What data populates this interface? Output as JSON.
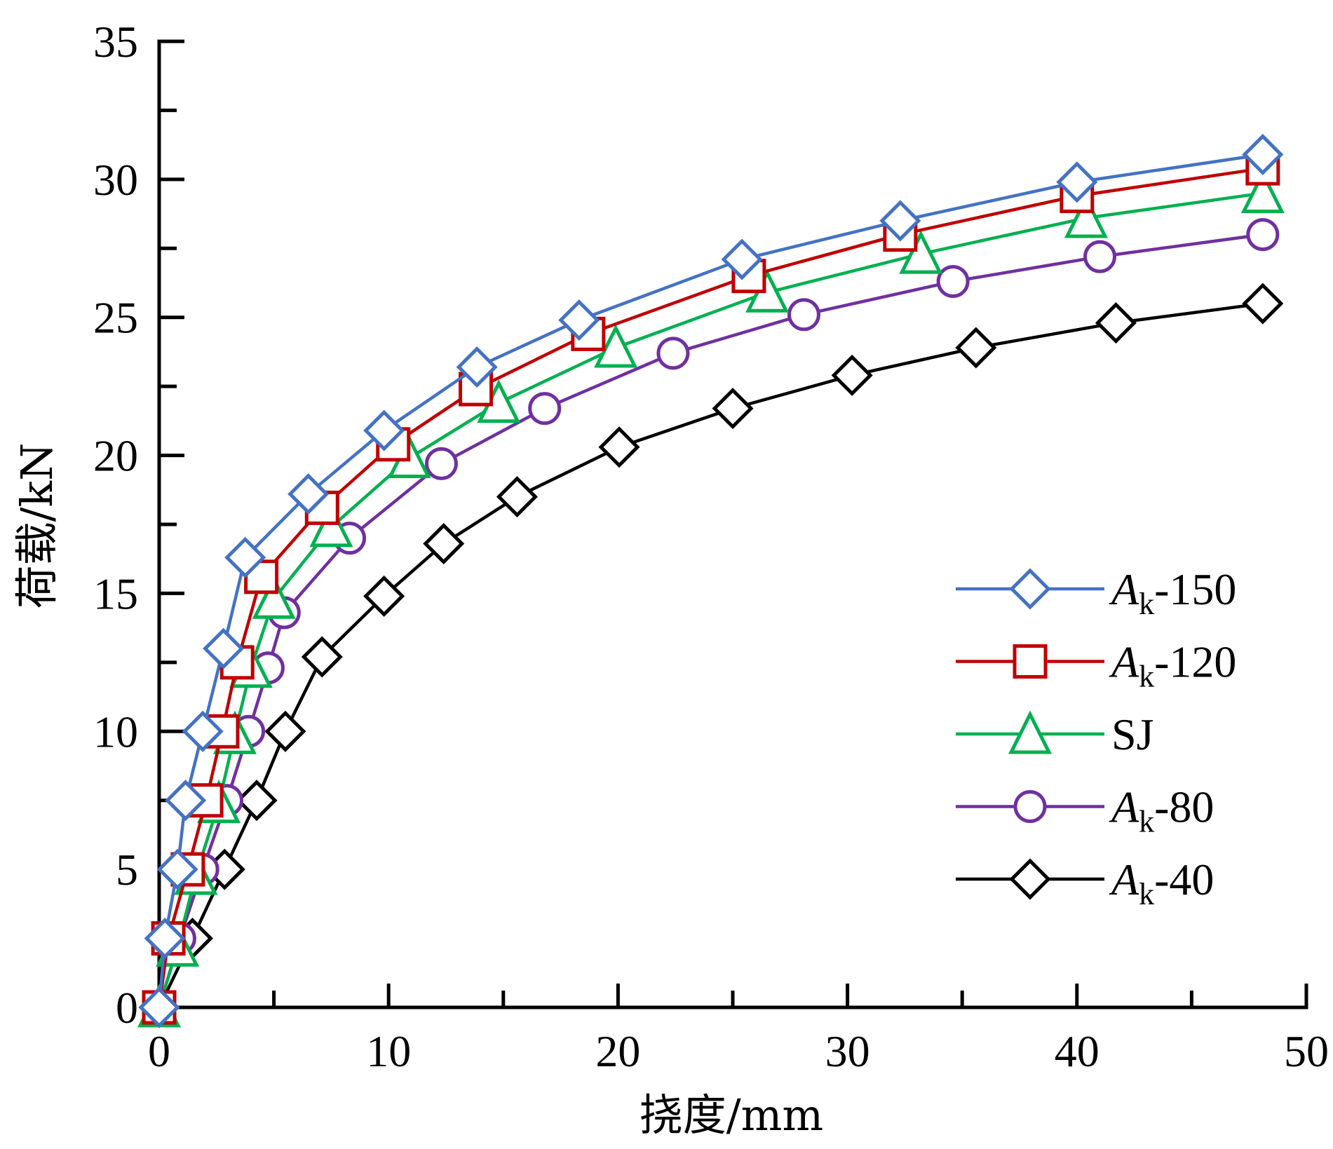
{
  "chart_data": {
    "type": "line",
    "title": "",
    "xlabel": "挠度/mm",
    "ylabel": "荷载/kN",
    "xlim": [
      0,
      50
    ],
    "ylim": [
      0,
      35
    ],
    "x_ticks": [
      0,
      10,
      20,
      30,
      40,
      50
    ],
    "x_tick_labels": [
      "0",
      "10",
      "20",
      "30",
      "40",
      "50"
    ],
    "x_minor_ticks": [
      5,
      15,
      25,
      35,
      45
    ],
    "y_ticks": [
      0,
      5,
      10,
      15,
      20,
      25,
      30,
      35
    ],
    "y_tick_labels": [
      "0",
      "5",
      "10",
      "15",
      "20",
      "25",
      "30",
      "35"
    ],
    "y_minor_ticks": [
      2.5,
      7.5,
      12.5,
      17.5,
      22.5,
      27.5,
      32.5
    ],
    "grid": false,
    "legend_position": "lower-right",
    "series": [
      {
        "name": "Ak-150",
        "label_main": "A",
        "label_sub": "k",
        "label_suffix": "-150",
        "italic_main": true,
        "color": "#4472C4",
        "marker": "diamond",
        "x": [
          0,
          0.25,
          0.8,
          1.15,
          1.9,
          2.8,
          3.75,
          6.5,
          9.8,
          13.85,
          18.3,
          25.4,
          32.3,
          40.0,
          48.1
        ],
        "y": [
          0,
          2.5,
          5.0,
          7.5,
          10.0,
          13.0,
          16.3,
          18.6,
          20.9,
          23.2,
          24.9,
          27.1,
          28.5,
          29.9,
          30.9
        ]
      },
      {
        "name": "Ak-120",
        "label_main": "A",
        "label_sub": "k",
        "label_suffix": "-120",
        "italic_main": true,
        "color": "#C00000",
        "marker": "square",
        "x": [
          0,
          0.4,
          1.25,
          2.05,
          2.75,
          3.4,
          4.45,
          7.1,
          10.2,
          13.8,
          18.7,
          25.7,
          32.3,
          40.0,
          48.1
        ],
        "y": [
          0,
          2.5,
          5.0,
          7.5,
          10.0,
          12.5,
          15.6,
          18.1,
          20.4,
          22.4,
          24.4,
          26.5,
          28.0,
          29.4,
          30.4
        ]
      },
      {
        "name": "SJ",
        "label_main": "SJ",
        "label_sub": "",
        "label_suffix": "",
        "italic_main": false,
        "color": "#00B050",
        "marker": "triangle",
        "x": [
          0,
          0.8,
          1.6,
          2.6,
          3.3,
          4.0,
          5.0,
          7.5,
          10.9,
          14.8,
          19.9,
          26.5,
          33.2,
          40.4,
          48.1
        ],
        "y": [
          0,
          2.2,
          4.8,
          7.4,
          9.9,
          12.3,
          14.8,
          17.4,
          19.9,
          21.9,
          23.9,
          25.9,
          27.3,
          28.6,
          29.5
        ]
      },
      {
        "name": "Ak-80",
        "label_main": "A",
        "label_sub": "k",
        "label_suffix": "-80",
        "italic_main": true,
        "color": "#7030A0",
        "marker": "circle",
        "x": [
          0,
          0.9,
          1.9,
          2.95,
          3.9,
          4.75,
          5.45,
          8.3,
          12.3,
          16.8,
          22.4,
          28.1,
          34.6,
          41.0,
          48.1
        ],
        "y": [
          0,
          2.5,
          5.0,
          7.5,
          10.0,
          12.3,
          14.3,
          17.0,
          19.7,
          21.7,
          23.7,
          25.1,
          26.3,
          27.2,
          28.0
        ]
      },
      {
        "name": "Ak-40",
        "label_main": "A",
        "label_sub": "k",
        "label_suffix": "-40",
        "italic_main": true,
        "color": "#000000",
        "marker": "diamond",
        "x": [
          0,
          1.45,
          2.85,
          4.25,
          5.5,
          7.1,
          9.8,
          12.4,
          15.6,
          20.05,
          25.0,
          30.2,
          35.6,
          41.7,
          48.1
        ],
        "y": [
          0,
          2.5,
          5.0,
          7.5,
          10.0,
          12.7,
          14.9,
          16.8,
          18.5,
          20.3,
          21.7,
          22.9,
          23.9,
          24.8,
          25.5
        ]
      }
    ]
  }
}
